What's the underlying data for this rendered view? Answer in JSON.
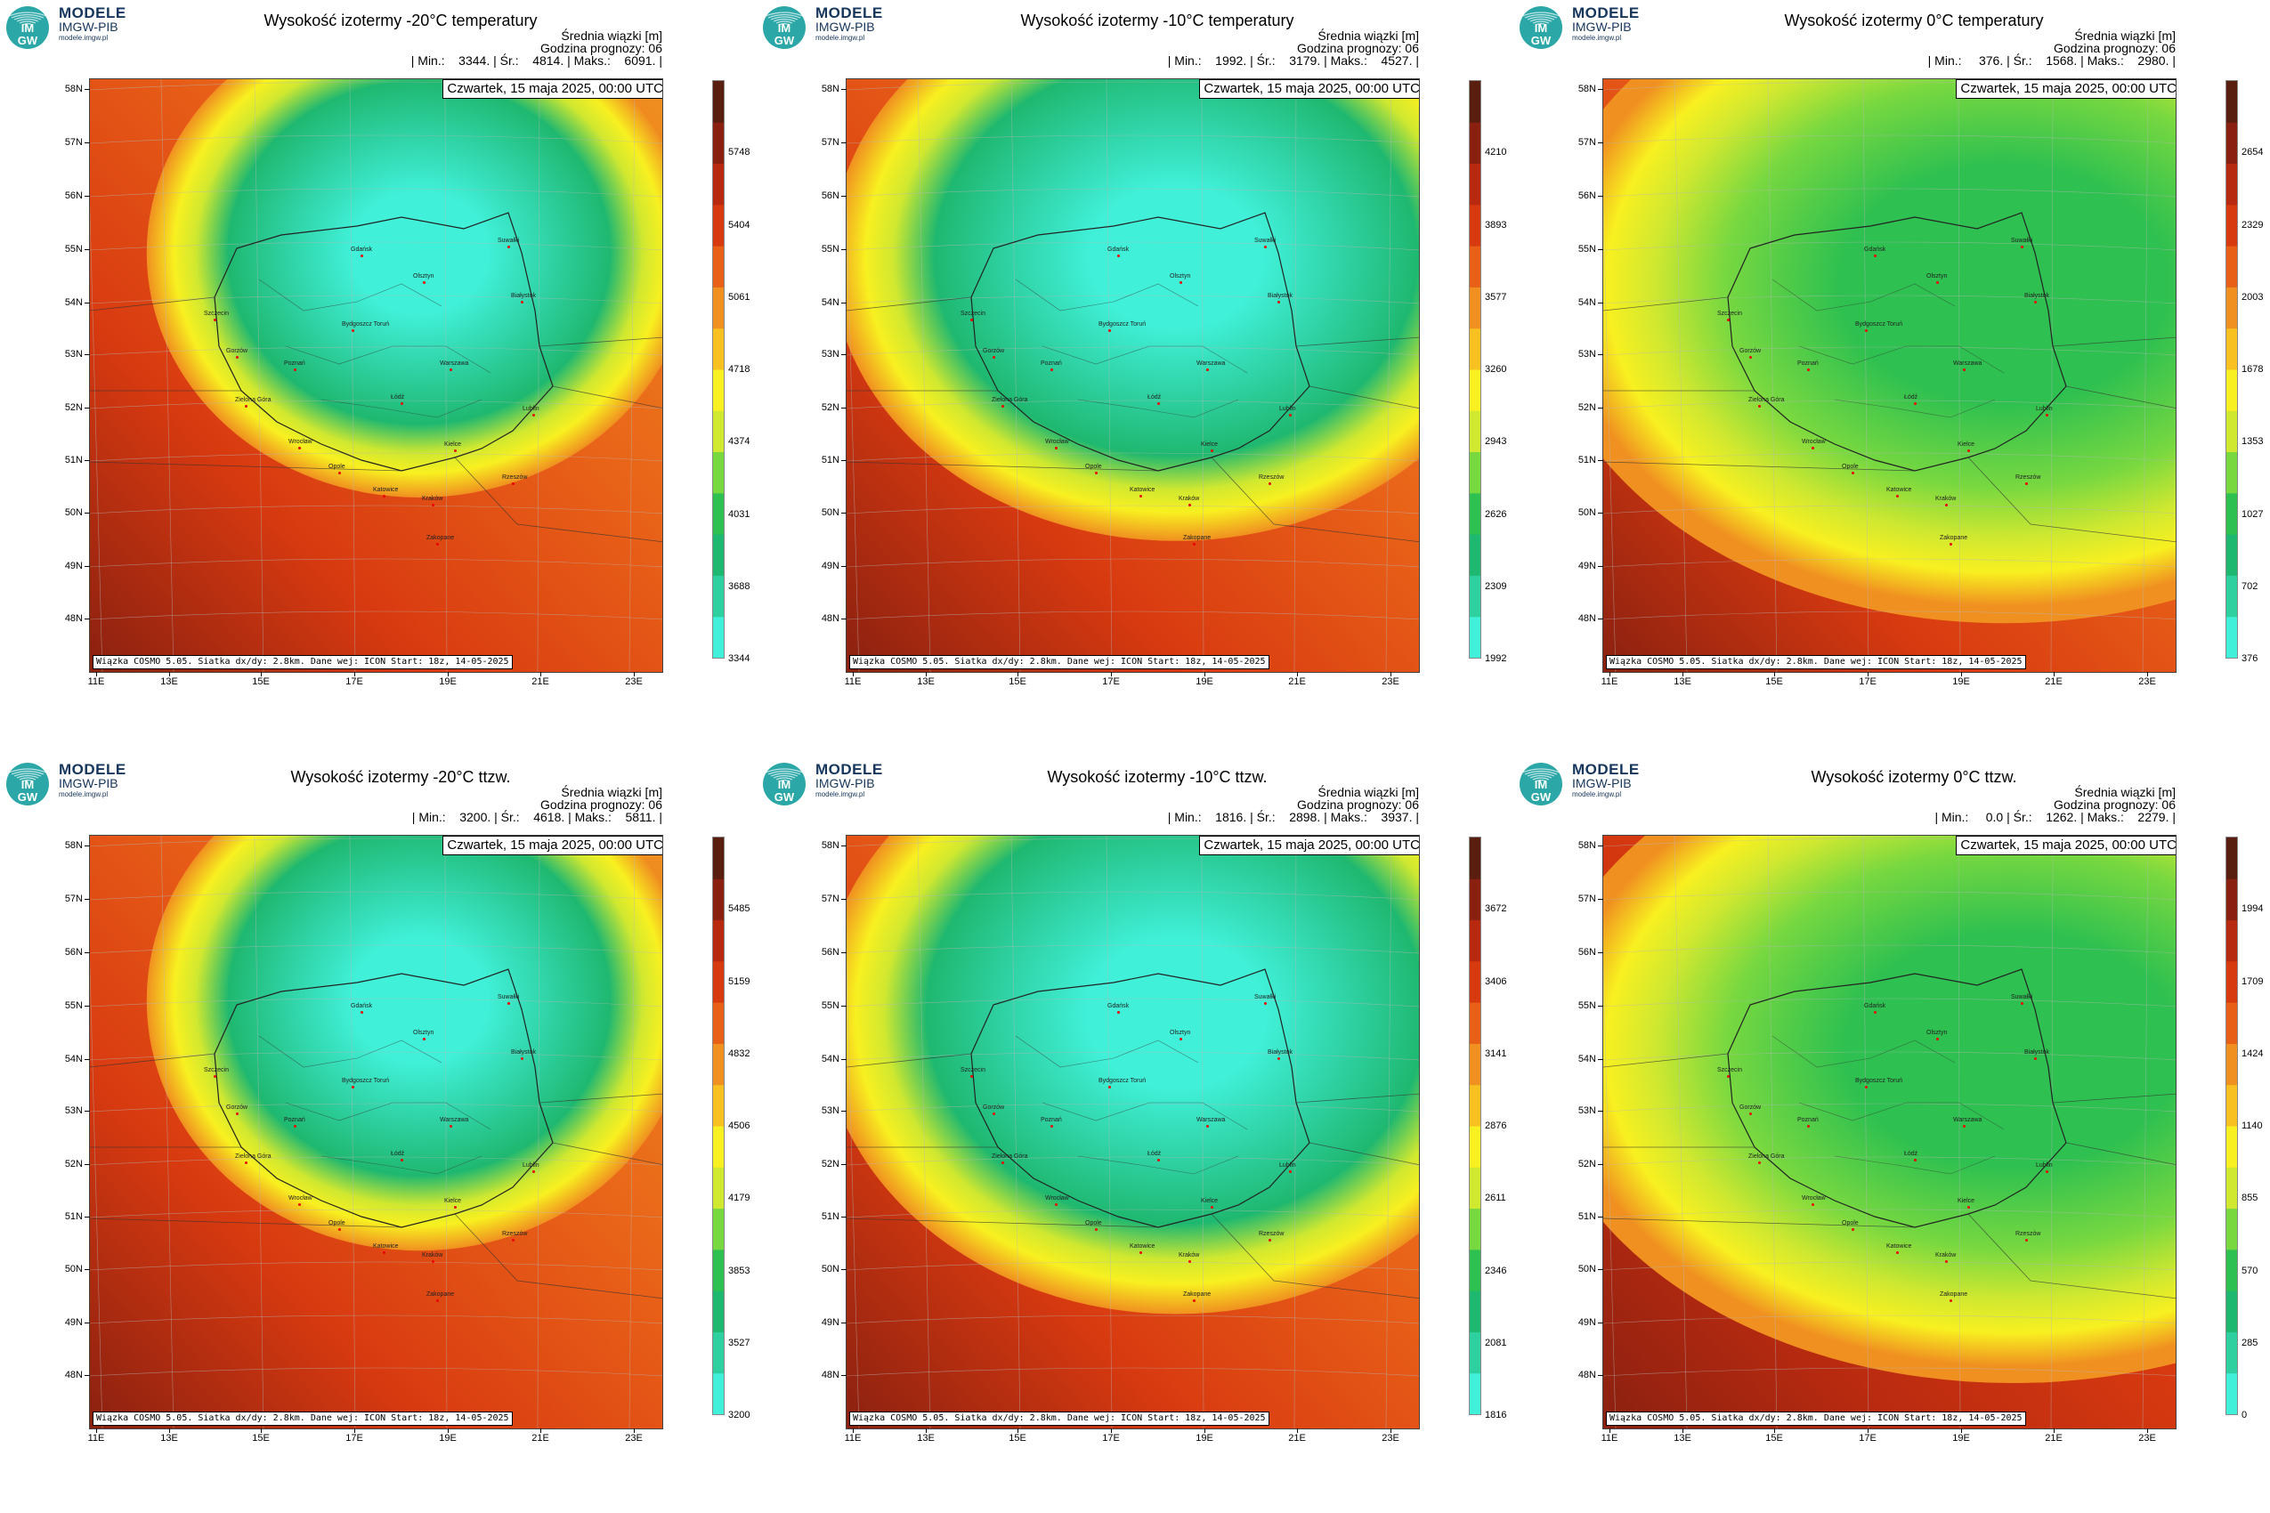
{
  "logo": {
    "line1": "MODELE",
    "line2": "IMGW-PIB",
    "line3": "modele.imgw.pl",
    "badge_top": "IM",
    "badge_bottom": "GW"
  },
  "common": {
    "info_line1": "Średnia wiązki [m]",
    "info_line2": "Godzina prognozy: 06",
    "date": "Czwartek, 15 maja 2025, 00:00 UTC",
    "footer": "Wiązka COSMO 5.05. Siatka dx/dy: 2.8km. Dane wej: ICON Start: 18z, 14-05-2025",
    "lat_labels": [
      "58N",
      "57N",
      "56N",
      "55N",
      "54N",
      "53N",
      "52N",
      "51N",
      "50N",
      "49N",
      "48N"
    ],
    "lon_labels": [
      "11E",
      "13E",
      "15E",
      "17E",
      "19E",
      "21E",
      "23E"
    ],
    "cities": [
      {
        "name": "Gdańsk"
      },
      {
        "name": "Olsztyn"
      },
      {
        "name": "Suwałki"
      },
      {
        "name": "Szczecin"
      },
      {
        "name": "Białystok"
      },
      {
        "name": "Bydgoszcz Toruń"
      },
      {
        "name": "Gorzów"
      },
      {
        "name": "Poznań"
      },
      {
        "name": "Warszawa"
      },
      {
        "name": "Zielona Góra"
      },
      {
        "name": "Łódź"
      },
      {
        "name": "Lublin"
      },
      {
        "name": "Wrocław"
      },
      {
        "name": "Kielce"
      },
      {
        "name": "Opole"
      },
      {
        "name": "Rzeszów"
      },
      {
        "name": "Katowice"
      },
      {
        "name": "Kraków"
      },
      {
        "name": "Zakopane"
      }
    ]
  },
  "panels": [
    {
      "title": "Wysokość izotermy -20°C temperatury",
      "stats": "| Min.:    3344. | Śr.:    4814. | Maks.:    6091. |",
      "min": 3344,
      "mean": 4814,
      "max": 6091,
      "colorbar": [
        "5748",
        "5404",
        "5061",
        "4718",
        "4374",
        "4031",
        "3688",
        "3344"
      ]
    },
    {
      "title": "Wysokość izotermy -10°C temperatury",
      "stats": "| Min.:    1992. | Śr.:    3179. | Maks.:    4527. |",
      "min": 1992,
      "mean": 3179,
      "max": 4527,
      "colorbar": [
        "4210",
        "3893",
        "3577",
        "3260",
        "2943",
        "2626",
        "2309",
        "1992"
      ]
    },
    {
      "title": "Wysokość izotermy 0°C temperatury",
      "stats": "| Min.:     376. | Śr.:    1568. | Maks.:    2980. |",
      "min": 376,
      "mean": 1568,
      "max": 2980,
      "colorbar": [
        "2654",
        "2329",
        "2003",
        "1678",
        "1353",
        "1027",
        "702",
        "376"
      ]
    },
    {
      "title": "Wysokość izotermy -20°C ttzw.",
      "stats": "| Min.:    3200. | Śr.:    4618. | Maks.:    5811. |",
      "min": 3200,
      "mean": 4618,
      "max": 5811,
      "colorbar": [
        "5485",
        "5159",
        "4832",
        "4506",
        "4179",
        "3853",
        "3527",
        "3200"
      ]
    },
    {
      "title": "Wysokość izotermy -10°C ttzw.",
      "stats": "| Min.:    1816. | Śr.:    2898. | Maks.:    3937. |",
      "min": 1816,
      "mean": 2898,
      "max": 3937,
      "colorbar": [
        "3672",
        "3406",
        "3141",
        "2876",
        "2611",
        "2346",
        "2081",
        "1816"
      ]
    },
    {
      "title": "Wysokość izotermy 0°C ttzw.",
      "stats": "| Min.:     0.0 | Śr.:    1262. | Maks.:    2279. |",
      "min": 0,
      "mean": 1262,
      "max": 2279,
      "colorbar": [
        "1994",
        "1709",
        "1424",
        "1140",
        "855",
        "570",
        "285",
        "0"
      ]
    }
  ],
  "colors": {
    "scale": [
      "#40f0d8",
      "#2ed0a0",
      "#1fb870",
      "#2ec050",
      "#78d840",
      "#d0e830",
      "#f8f020",
      "#f8c020",
      "#f09020",
      "#e86018",
      "#d83a10",
      "#b82a10",
      "#8a2010",
      "#5a1e10"
    ]
  }
}
